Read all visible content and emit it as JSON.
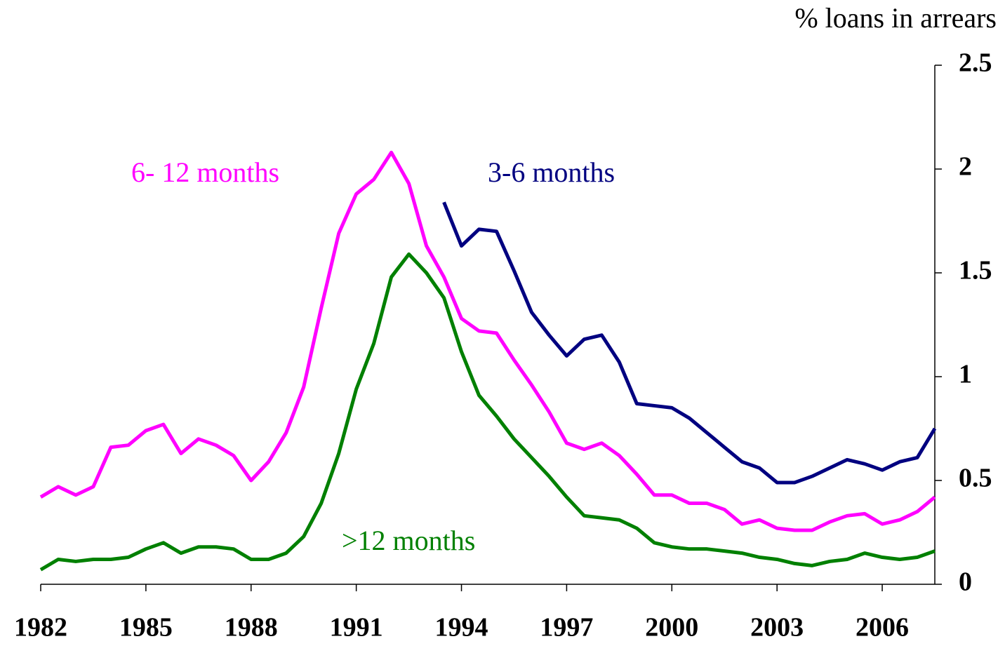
{
  "chart_data": {
    "type": "line",
    "y_axis_label": "% loans in arrears",
    "x": [
      1982,
      1982.5,
      1983,
      1983.5,
      1984,
      1984.5,
      1985,
      1985.5,
      1986,
      1986.5,
      1987,
      1987.5,
      1988,
      1988.5,
      1989,
      1989.5,
      1990,
      1990.5,
      1991,
      1991.5,
      1992,
      1992.5,
      1993,
      1993.5,
      1994,
      1994.5,
      1995,
      1995.5,
      1996,
      1996.5,
      1997,
      1997.5,
      1998,
      1998.5,
      1999,
      1999.5,
      2000,
      2000.5,
      2001,
      2001.5,
      2002,
      2002.5,
      2003,
      2003.5,
      2004,
      2004.5,
      2005,
      2005.5,
      2006,
      2006.5,
      2007,
      2007.5
    ],
    "series": [
      {
        "name": "6- 12 months",
        "color": "#ff00ff",
        "values": [
          0.42,
          0.47,
          0.43,
          0.47,
          0.66,
          0.67,
          0.74,
          0.77,
          0.63,
          0.7,
          0.67,
          0.62,
          0.5,
          0.59,
          0.73,
          0.95,
          1.33,
          1.69,
          1.88,
          1.95,
          2.08,
          1.93,
          1.63,
          1.48,
          1.28,
          1.22,
          1.21,
          1.08,
          0.96,
          0.83,
          0.68,
          0.65,
          0.68,
          0.62,
          0.53,
          0.43,
          0.43,
          0.39,
          0.39,
          0.36,
          0.29,
          0.31,
          0.27,
          0.26,
          0.26,
          0.3,
          0.33,
          0.34,
          0.29,
          0.31,
          0.35,
          0.42
        ]
      },
      {
        "name": "3-6 months",
        "color": "#000080",
        "values": [
          null,
          null,
          null,
          null,
          null,
          null,
          null,
          null,
          null,
          null,
          null,
          null,
          null,
          null,
          null,
          null,
          null,
          null,
          null,
          null,
          null,
          null,
          null,
          1.84,
          1.63,
          1.71,
          1.7,
          1.51,
          1.31,
          1.2,
          1.1,
          1.18,
          1.2,
          1.07,
          0.87,
          0.86,
          0.85,
          0.8,
          0.73,
          0.66,
          0.59,
          0.56,
          0.49,
          0.49,
          0.52,
          0.56,
          0.6,
          0.58,
          0.55,
          0.59,
          0.61,
          0.75
        ]
      },
      {
        "name": ">12 months",
        "color": "#008000",
        "values": [
          0.07,
          0.12,
          0.11,
          0.12,
          0.12,
          0.13,
          0.17,
          0.2,
          0.15,
          0.18,
          0.18,
          0.17,
          0.12,
          0.12,
          0.15,
          0.23,
          0.39,
          0.63,
          0.94,
          1.16,
          1.48,
          1.59,
          1.5,
          1.38,
          1.12,
          0.91,
          0.81,
          0.7,
          0.61,
          0.52,
          0.42,
          0.33,
          0.32,
          0.31,
          0.27,
          0.2,
          0.18,
          0.17,
          0.17,
          0.16,
          0.15,
          0.13,
          0.12,
          0.1,
          0.09,
          0.11,
          0.12,
          0.15,
          0.13,
          0.12,
          0.13,
          0.16
        ]
      }
    ],
    "xlim": [
      1982,
      2007.5
    ],
    "xticks": [
      1982,
      1985,
      1988,
      1991,
      1994,
      1997,
      2000,
      2003,
      2006
    ],
    "ylim": [
      0,
      2.5
    ],
    "yticks": [
      0,
      0.5,
      1,
      1.5,
      2,
      2.5
    ],
    "grid": false,
    "legend": "annotations"
  }
}
